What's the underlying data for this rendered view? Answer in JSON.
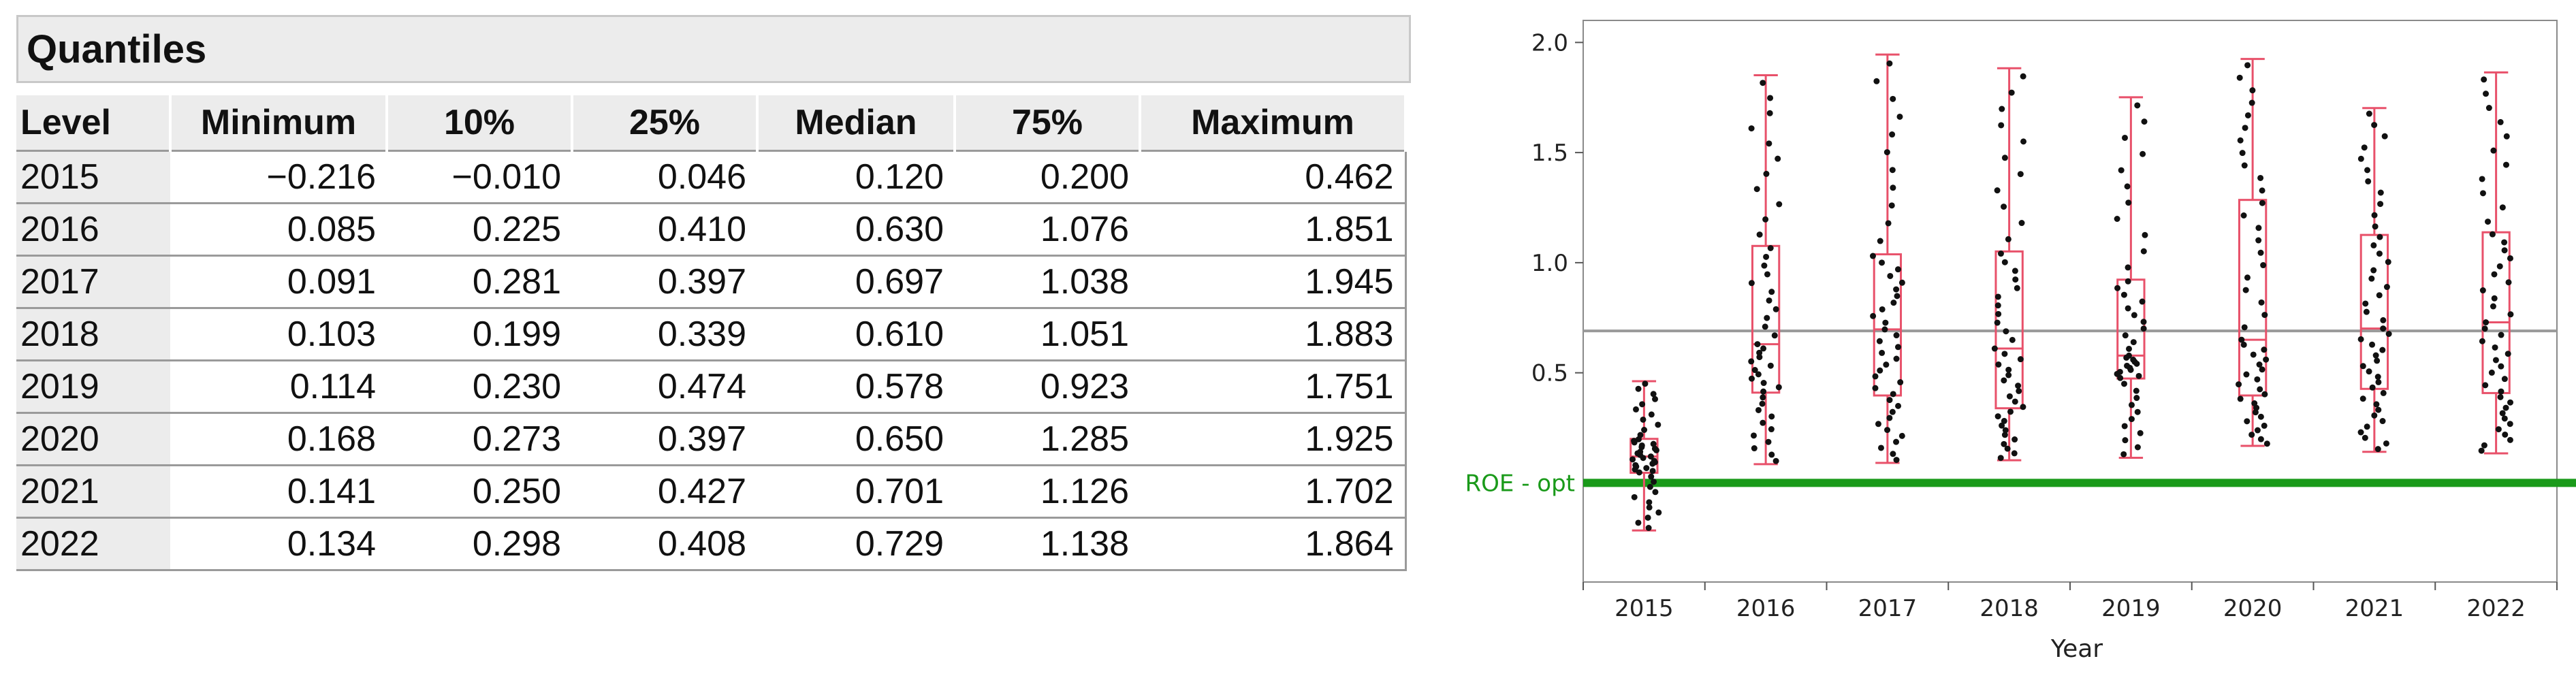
{
  "quantiles": {
    "title": "Quantiles",
    "columns": [
      "Level",
      "Minimum",
      "10%",
      "25%",
      "Median",
      "75%",
      "Maximum"
    ],
    "rows": [
      {
        "level": "2015",
        "min": "−0.216",
        "p10": "−0.010",
        "p25": "0.046",
        "median": "0.120",
        "p75": "0.200",
        "max": "0.462"
      },
      {
        "level": "2016",
        "min": "0.085",
        "p10": "0.225",
        "p25": "0.410",
        "median": "0.630",
        "p75": "1.076",
        "max": "1.851"
      },
      {
        "level": "2017",
        "min": "0.091",
        "p10": "0.281",
        "p25": "0.397",
        "median": "0.697",
        "p75": "1.038",
        "max": "1.945"
      },
      {
        "level": "2018",
        "min": "0.103",
        "p10": "0.199",
        "p25": "0.339",
        "median": "0.610",
        "p75": "1.051",
        "max": "1.883"
      },
      {
        "level": "2019",
        "min": "0.114",
        "p10": "0.230",
        "p25": "0.474",
        "median": "0.578",
        "p75": "0.923",
        "max": "1.751"
      },
      {
        "level": "2020",
        "min": "0.168",
        "p10": "0.273",
        "p25": "0.397",
        "median": "0.650",
        "p75": "1.285",
        "max": "1.925"
      },
      {
        "level": "2021",
        "min": "0.141",
        "p10": "0.250",
        "p25": "0.427",
        "median": "0.701",
        "p75": "1.126",
        "max": "1.702"
      },
      {
        "level": "2022",
        "min": "0.134",
        "p10": "0.298",
        "p25": "0.408",
        "median": "0.729",
        "p75": "1.138",
        "max": "1.864"
      }
    ]
  },
  "chart_data": {
    "type": "box",
    "xlabel": "Year",
    "ylabel": "",
    "ylim": [
      -0.45,
      2.1
    ],
    "yticks": [
      "0.5",
      "1.0",
      "1.5",
      "2.0"
    ],
    "ytick_values": [
      0.5,
      1.0,
      1.5,
      2.0
    ],
    "categories": [
      "2015",
      "2016",
      "2017",
      "2018",
      "2019",
      "2020",
      "2021",
      "2022"
    ],
    "boxes": [
      {
        "category": "2015",
        "min": -0.216,
        "q1": 0.046,
        "median": 0.12,
        "q3": 0.2,
        "max": 0.462
      },
      {
        "category": "2016",
        "min": 0.085,
        "q1": 0.41,
        "median": 0.63,
        "q3": 1.076,
        "max": 1.851
      },
      {
        "category": "2017",
        "min": 0.091,
        "q1": 0.397,
        "median": 0.697,
        "q3": 1.038,
        "max": 1.945
      },
      {
        "category": "2018",
        "min": 0.103,
        "q1": 0.339,
        "median": 0.61,
        "q3": 1.051,
        "max": 1.883
      },
      {
        "category": "2019",
        "min": 0.114,
        "q1": 0.474,
        "median": 0.578,
        "q3": 0.923,
        "max": 1.751
      },
      {
        "category": "2020",
        "min": 0.168,
        "q1": 0.397,
        "median": 0.65,
        "q3": 1.285,
        "max": 1.925
      },
      {
        "category": "2021",
        "min": 0.141,
        "q1": 0.427,
        "median": 0.701,
        "q3": 1.126,
        "max": 1.702
      },
      {
        "category": "2022",
        "min": 0.134,
        "q1": 0.408,
        "median": 0.729,
        "q3": 1.138,
        "max": 1.864
      }
    ],
    "points_per_category": 45,
    "grand_mean": 0.69,
    "reference_line": {
      "label": "ROE - opt",
      "value": 0.0,
      "color": "#1a9a1a"
    },
    "box_color": "#e8516a",
    "point_color": "#111111",
    "mean_line_color": "#9a9a9a"
  }
}
